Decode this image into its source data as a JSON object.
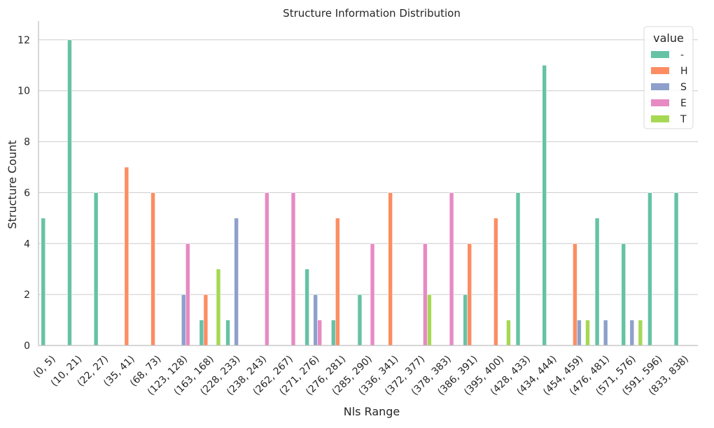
{
  "chart_data": {
    "type": "bar",
    "title": "Structure Information Distribution",
    "xlabel": "Nls Range",
    "ylabel": "Structure Count",
    "ylim": [
      0,
      12.6
    ],
    "yticks": [
      0,
      2,
      4,
      6,
      8,
      10,
      12
    ],
    "grid": "horizontal",
    "legend": {
      "title": "value",
      "position": "top-right"
    },
    "categories": [
      "(0, 5)",
      "(10, 21)",
      "(22, 27)",
      "(35, 41)",
      "(68, 73)",
      "(123, 128)",
      "(163, 168)",
      "(228, 233)",
      "(238, 243)",
      "(262, 267)",
      "(271, 276)",
      "(276, 281)",
      "(285, 290)",
      "(336, 341)",
      "(372, 377)",
      "(378, 383)",
      "(386, 391)",
      "(395, 400)",
      "(428, 433)",
      "(434, 444)",
      "(454, 459)",
      "(476, 481)",
      "(571, 576)",
      "(591, 596)",
      "(833, 838)"
    ],
    "series": [
      {
        "name": "-",
        "color": "#66c2a5",
        "values": [
          5,
          12,
          6,
          0,
          0,
          0,
          1,
          1,
          0,
          0,
          3,
          1,
          2,
          0,
          0,
          0,
          2,
          0,
          6,
          11,
          0,
          5,
          4,
          6,
          6
        ]
      },
      {
        "name": "H",
        "color": "#fc8d62",
        "values": [
          0,
          0,
          0,
          7,
          6,
          0,
          2,
          0,
          0,
          0,
          0,
          5,
          0,
          6,
          0,
          0,
          4,
          5,
          0,
          0,
          4,
          0,
          0,
          0,
          0
        ]
      },
      {
        "name": "S",
        "color": "#8da0cb",
        "values": [
          0,
          0,
          0,
          0,
          0,
          2,
          0,
          5,
          0,
          0,
          2,
          0,
          0,
          0,
          0,
          0,
          0,
          0,
          0,
          0,
          1,
          1,
          1,
          0,
          0
        ]
      },
      {
        "name": "E",
        "color": "#e78ac3",
        "values": [
          0,
          0,
          0,
          0,
          0,
          4,
          0,
          0,
          6,
          6,
          1,
          0,
          4,
          0,
          4,
          6,
          0,
          0,
          0,
          0,
          0,
          0,
          0,
          0,
          0
        ]
      },
      {
        "name": "T",
        "color": "#a6d854",
        "values": [
          0,
          0,
          0,
          0,
          0,
          0,
          3,
          0,
          0,
          0,
          0,
          0,
          0,
          0,
          2,
          0,
          0,
          1,
          0,
          0,
          1,
          0,
          1,
          0,
          0
        ]
      }
    ]
  }
}
